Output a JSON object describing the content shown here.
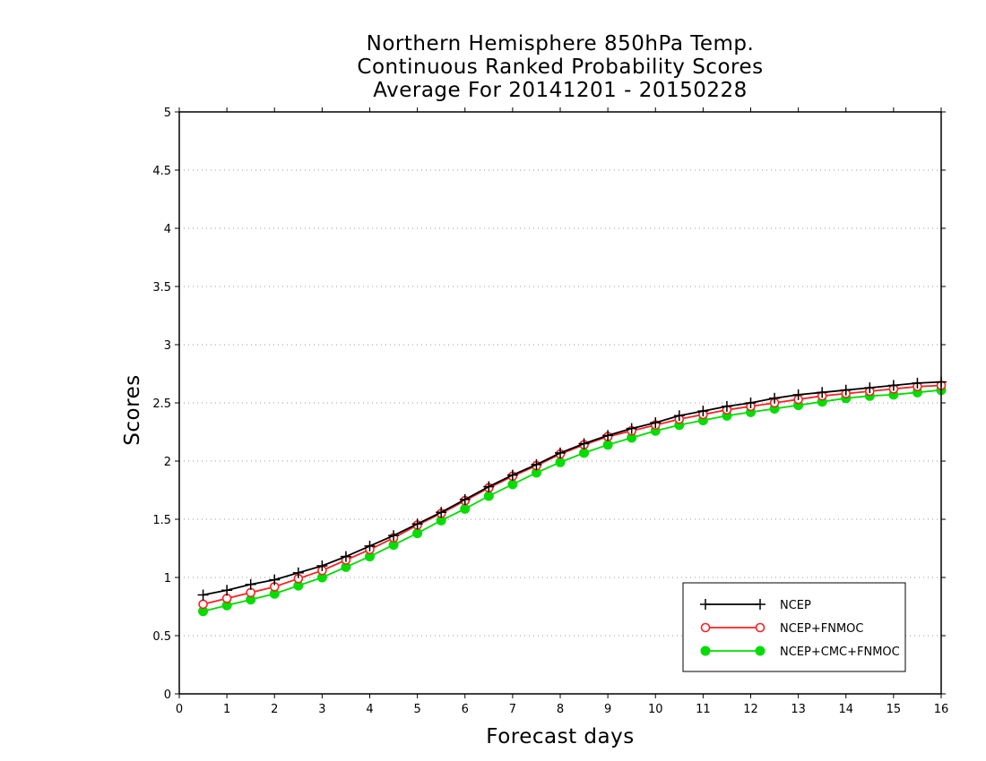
{
  "chart_data": {
    "type": "line",
    "title": [
      "Northern Hemisphere 850hPa Temp.",
      "Continuous Ranked Probability Scores",
      "Average For 20141201 - 20150228"
    ],
    "xlabel": "Forecast days",
    "ylabel": "Scores",
    "xlim": [
      0,
      16
    ],
    "ylim": [
      0,
      5
    ],
    "xticks": [
      0,
      1,
      2,
      3,
      4,
      5,
      6,
      7,
      8,
      9,
      10,
      11,
      12,
      13,
      14,
      15,
      16
    ],
    "yticks": [
      0,
      0.5,
      1,
      1.5,
      2,
      2.5,
      3,
      3.5,
      4,
      4.5,
      5
    ],
    "ytick_labels": [
      "0",
      "0.5",
      "1",
      "1.5",
      "2",
      "2.5",
      "3",
      "3.5",
      "4",
      "4.5",
      "5"
    ],
    "grid": "horizontal-dotted",
    "legend_position": "bottom-right",
    "x": [
      0.5,
      1,
      1.5,
      2,
      2.5,
      3,
      3.5,
      4,
      4.5,
      5,
      5.5,
      6,
      6.5,
      7,
      7.5,
      8,
      8.5,
      9,
      9.5,
      10,
      10.5,
      11,
      11.5,
      12,
      12.5,
      13,
      13.5,
      14,
      14.5,
      15,
      15.5,
      16
    ],
    "series": [
      {
        "name": "NCEP",
        "color": "#000000",
        "marker": "plus",
        "values": [
          0.85,
          0.89,
          0.94,
          0.98,
          1.04,
          1.1,
          1.18,
          1.27,
          1.36,
          1.46,
          1.56,
          1.67,
          1.78,
          1.88,
          1.97,
          2.07,
          2.15,
          2.22,
          2.28,
          2.33,
          2.39,
          2.43,
          2.47,
          2.5,
          2.54,
          2.57,
          2.59,
          2.61,
          2.63,
          2.65,
          2.67,
          2.68
        ]
      },
      {
        "name": "NCEP+FNMOC",
        "color": "#ff2020",
        "marker": "open-circle",
        "values": [
          0.77,
          0.82,
          0.87,
          0.92,
          0.99,
          1.06,
          1.15,
          1.24,
          1.34,
          1.45,
          1.55,
          1.66,
          1.77,
          1.87,
          1.96,
          2.06,
          2.14,
          2.21,
          2.26,
          2.31,
          2.36,
          2.4,
          2.44,
          2.47,
          2.5,
          2.53,
          2.56,
          2.58,
          2.6,
          2.62,
          2.64,
          2.65
        ]
      },
      {
        "name": "NCEP+CMC+FNMOC",
        "color": "#00dd00",
        "marker": "filled-circle",
        "values": [
          0.71,
          0.76,
          0.81,
          0.86,
          0.93,
          1.0,
          1.09,
          1.18,
          1.28,
          1.38,
          1.49,
          1.59,
          1.7,
          1.8,
          1.9,
          1.99,
          2.07,
          2.14,
          2.2,
          2.26,
          2.31,
          2.35,
          2.39,
          2.42,
          2.45,
          2.48,
          2.51,
          2.54,
          2.56,
          2.57,
          2.59,
          2.61
        ]
      }
    ]
  }
}
